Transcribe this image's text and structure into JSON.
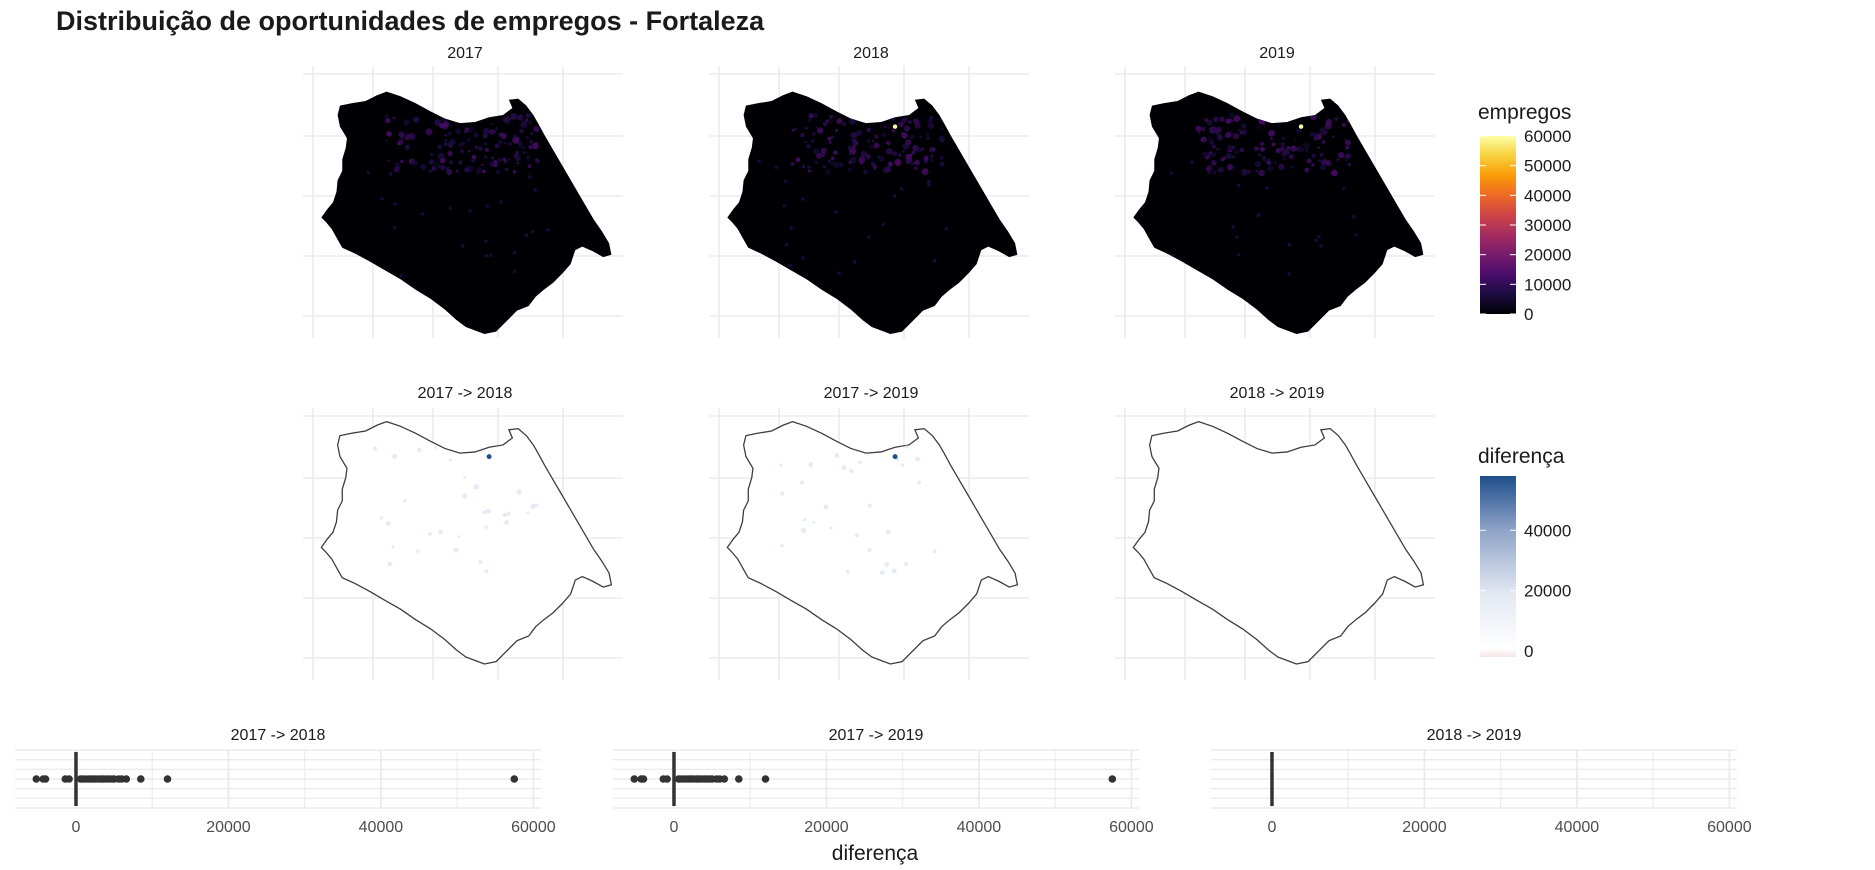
{
  "title": "Distribuição de oportunidades de empregos - Fortaleza",
  "colors": {
    "grid": "#ebebeb",
    "outline": "#3c3c3c",
    "inferno": [
      "#000004",
      "#1b0c41",
      "#4a0c6b",
      "#781c6d",
      "#a52c60",
      "#cf4446",
      "#ed6925",
      "#fb9b06",
      "#f7d13d",
      "#fcffa4"
    ],
    "diff_high": "#1f4e8c",
    "diff_mid": "#ffffff",
    "diff_low": "#f4e6e6",
    "box": "#333333"
  },
  "chart_data": [
    {
      "type": "heatmap",
      "panels": [
        "2017",
        "2018",
        "2019"
      ],
      "legend": {
        "title": "empregos",
        "ticks": [
          0,
          10000,
          20000,
          30000,
          40000,
          50000,
          60000
        ],
        "range": [
          0,
          60000
        ],
        "scale": "inferno"
      },
      "hotspots": [
        {
          "panel": "2018",
          "value": 60000
        },
        {
          "panel": "2019",
          "value": 60000
        }
      ]
    },
    {
      "type": "heatmap",
      "panels": [
        "2017 -> 2018",
        "2017 -> 2019",
        "2018 -> 2019"
      ],
      "legend": {
        "title": "diferença",
        "ticks": [
          0,
          20000,
          40000
        ],
        "range": [
          -2000,
          58000
        ],
        "scale": "white-to-blue"
      },
      "hotspots": [
        {
          "panel": "2017 -> 2018",
          "value": 57500
        },
        {
          "panel": "2017 -> 2019",
          "value": 57500
        },
        {
          "panel": "2018 -> 2019",
          "value": 0
        }
      ]
    },
    {
      "type": "scatter",
      "kind": "boxplot",
      "xlabel": "diferença",
      "xlim": [
        -8000,
        61000
      ],
      "xticks": [
        0,
        20000,
        40000,
        60000
      ],
      "panels": [
        {
          "name": "2017 -> 2018",
          "median": 0,
          "outliers": [
            -5200,
            -4300,
            -4000,
            -1400,
            -900,
            600,
            900,
            1300,
            1700,
            2000,
            2300,
            2600,
            3000,
            3300,
            3600,
            4000,
            4300,
            4700,
            5000,
            5600,
            6000,
            6600,
            8500,
            12000,
            57500
          ]
        },
        {
          "name": "2017 -> 2019",
          "median": 0,
          "outliers": [
            -5200,
            -4300,
            -4000,
            -1400,
            -900,
            600,
            900,
            1300,
            1700,
            2000,
            2300,
            2600,
            3000,
            3300,
            3600,
            4000,
            4300,
            4700,
            5000,
            5600,
            6000,
            6600,
            8500,
            12000,
            57500
          ]
        },
        {
          "name": "2018 -> 2019",
          "median": 0,
          "outliers": []
        }
      ]
    }
  ]
}
